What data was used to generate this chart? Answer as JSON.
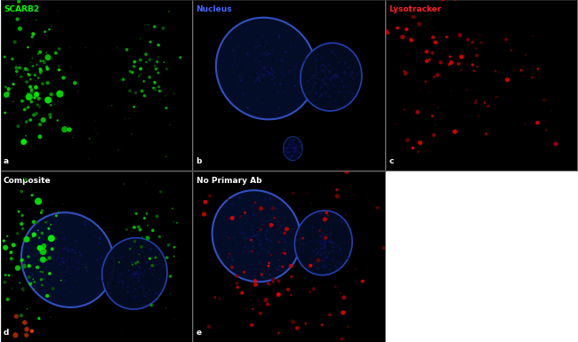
{
  "panels": [
    {
      "label": "a",
      "title": "SCARB2",
      "title_color": "#00ff00",
      "row": 0,
      "col": 0
    },
    {
      "label": "b",
      "title": "Nucleus",
      "title_color": "#4466ff",
      "row": 0,
      "col": 1
    },
    {
      "label": "c",
      "title": "Lysotracker",
      "title_color": "#ff2222",
      "row": 0,
      "col": 2
    },
    {
      "label": "d",
      "title": "Composite",
      "title_color": "#ffffff",
      "row": 1,
      "col": 0
    },
    {
      "label": "e",
      "title": "No Primary Ab",
      "title_color": "#ffffff",
      "row": 1,
      "col": 1
    }
  ],
  "background_color": "#000000",
  "outer_background": "#ffffff"
}
